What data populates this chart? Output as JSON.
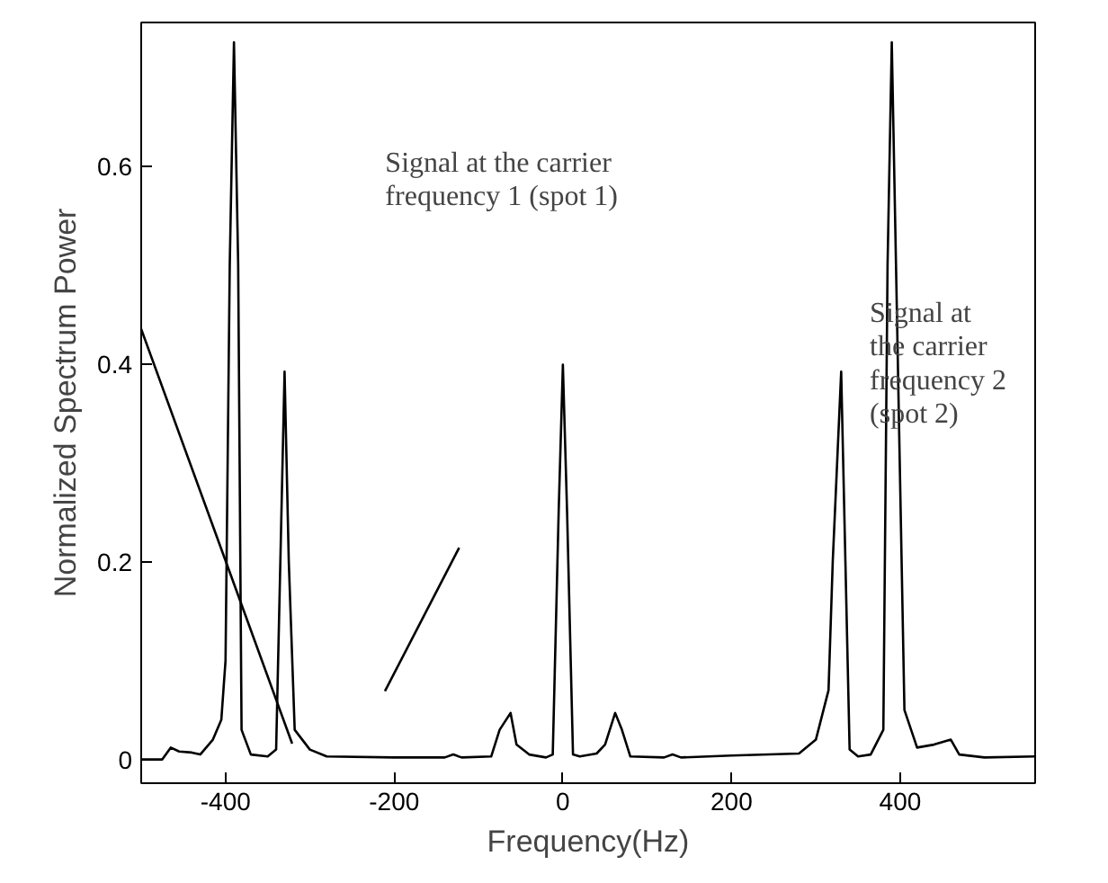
{
  "chart_data": {
    "type": "line",
    "xlabel": "Frequency(Hz)",
    "ylabel": "Normalized Spectrum Power",
    "xlim": [
      -500,
      560
    ],
    "ylim": [
      -0.024,
      0.745
    ],
    "xticks": [
      -400,
      -200,
      0,
      200,
      400
    ],
    "yticks": [
      0,
      0.2,
      0.4,
      0.6
    ],
    "grid": false,
    "marker": "none",
    "line_style": "solid",
    "series": [
      {
        "color": "#000000",
        "x": [
          -500,
          -475,
          -465,
          -455,
          -440,
          -430,
          -415,
          -405,
          -400,
          -395,
          -390,
          -385,
          -381,
          -370,
          -350,
          -340,
          -335,
          -330,
          -325,
          -318,
          -300,
          -280,
          -200,
          -140,
          -130,
          -120,
          -85,
          -75,
          -62,
          -55,
          -40,
          -20,
          -12,
          -5,
          0,
          5,
          12,
          20,
          40,
          50,
          62,
          70,
          80,
          120,
          130,
          140,
          200,
          280,
          300,
          315,
          320,
          330,
          335,
          340,
          350,
          365,
          380,
          385,
          390,
          395,
          405,
          420,
          440,
          460,
          470,
          500,
          560
        ],
        "values": [
          0,
          0,
          0.012,
          0.008,
          0.007,
          0.005,
          0.02,
          0.04,
          0.1,
          0.5,
          0.725,
          0.5,
          0.03,
          0.005,
          0.003,
          0.01,
          0.2,
          0.392,
          0.2,
          0.03,
          0.01,
          0.003,
          0.002,
          0.002,
          0.005,
          0.002,
          0.003,
          0.03,
          0.047,
          0.015,
          0.005,
          0.002,
          0.005,
          0.25,
          0.399,
          0.25,
          0.005,
          0.003,
          0.006,
          0.015,
          0.047,
          0.03,
          0.003,
          0.002,
          0.005,
          0.002,
          0.004,
          0.006,
          0.02,
          0.07,
          0.2,
          0.392,
          0.2,
          0.01,
          0.003,
          0.005,
          0.03,
          0.5,
          0.725,
          0.5,
          0.05,
          0.012,
          0.015,
          0.02,
          0.005,
          0.002,
          0.003
        ]
      },
      {
        "color": "#000000",
        "x": [
          -500,
          -321
        ],
        "values": [
          0.435,
          0.016
        ]
      },
      {
        "color": "#000000",
        "x": [
          -211,
          -123
        ],
        "values": [
          0.069,
          0.214
        ]
      }
    ],
    "annotations": [
      "Signal at the carrier\nfrequency 1 (spot 1)",
      "Signal at\nthe carrier\nfrequency 2\n(spot 2)"
    ]
  }
}
